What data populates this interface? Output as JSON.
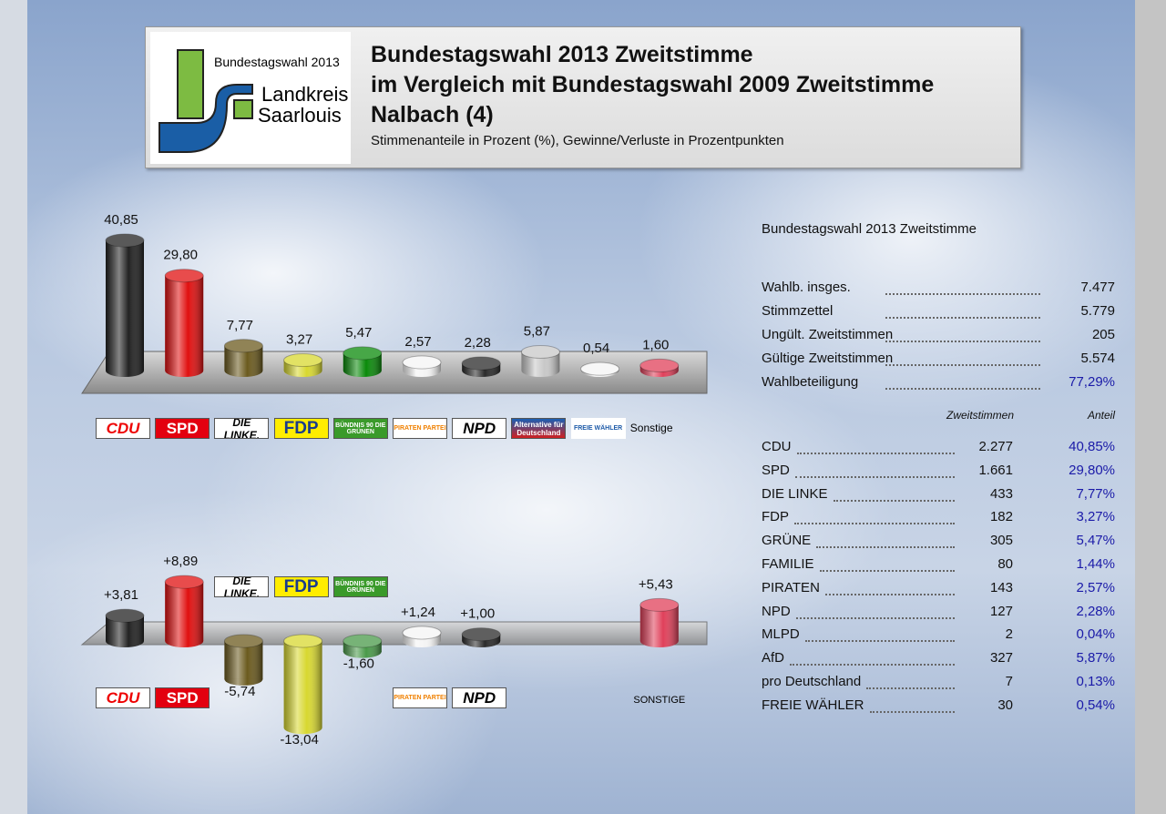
{
  "header": {
    "logo_year": "Bundestagswahl 2013",
    "logo_name": [
      "Landkreis",
      "Saarlouis"
    ],
    "title": [
      "Bundestagswahl 2013 Zweitstimme",
      "im Vergleich mit Bundestagswahl 2009 Zweitstimme",
      "Nalbach (4)"
    ],
    "subtitle": "Stimmenanteile in Prozent (%), Gewinne/Verluste in Prozentpunkten"
  },
  "chart_data": [
    {
      "type": "bar",
      "categories": [
        "CDU",
        "SPD",
        "DIE LINKE.",
        "FDP",
        "BÜNDNIS 90 DIE GRÜNEN",
        "PIRATEN PARTEI",
        "NPD",
        "Alternative für Deutschland",
        "FREIE WÄHLER",
        "Sonstige"
      ],
      "values": [
        40.85,
        29.8,
        7.77,
        3.27,
        5.47,
        2.57,
        2.28,
        5.87,
        0.54,
        1.6
      ],
      "value_labels": [
        "40,85",
        "29,80",
        "7,77",
        "3,27",
        "5,47",
        "2,57",
        "2,28",
        "5,87",
        "0,54",
        "1,60"
      ],
      "colors": [
        "#222222",
        "#e01010",
        "#6b5a1e",
        "#d8d830",
        "#0a8a0a",
        "#f4f4f4",
        "#2a2a2a",
        "#c8c8c8",
        "#f4f4f4",
        "#e0405a"
      ]
    },
    {
      "type": "bar",
      "categories": [
        "CDU",
        "SPD",
        "DIE LINKE.",
        "FDP",
        "BÜNDNIS 90 DIE GRÜNEN",
        "PIRATEN PARTEI",
        "NPD",
        "SONSTIGE"
      ],
      "values": [
        3.81,
        8.89,
        -5.74,
        -13.04,
        -1.6,
        1.24,
        1.0,
        5.43
      ],
      "value_labels": [
        "+3,81",
        "+8,89",
        "-5,74",
        "-13,04",
        "-1,60",
        "+1,24",
        "+1,00",
        "+5,43"
      ],
      "colors": [
        "#222222",
        "#e01010",
        "#6b5a1e",
        "#d8d830",
        "#4a9a4a",
        "#f4f4f4",
        "#2a2a2a",
        "#e0405a"
      ]
    }
  ],
  "stats": {
    "title": "Bundestagswahl 2013 Zweitstimme",
    "rows": [
      [
        "Wahlb. insges.",
        "7.477"
      ],
      [
        "Stimmzettel",
        "5.779"
      ],
      [
        "Ungült. Zweitstimmen",
        "205"
      ],
      [
        "Gültige Zweitstimmen",
        "5.574"
      ],
      [
        "Wahlbeteiligung",
        "77,29%"
      ]
    ]
  },
  "table": {
    "headers": [
      "Zweitstimmen",
      "Anteil"
    ],
    "rows": [
      [
        "CDU",
        "2.277",
        "40,85%"
      ],
      [
        "SPD",
        "1.661",
        "29,80%"
      ],
      [
        "DIE LINKE",
        "433",
        "7,77%"
      ],
      [
        "FDP",
        "182",
        "3,27%"
      ],
      [
        "GRÜNE",
        "305",
        "5,47%"
      ],
      [
        "FAMILIE",
        "80",
        "1,44%"
      ],
      [
        "PIRATEN",
        "143",
        "2,57%"
      ],
      [
        "NPD",
        "127",
        "2,28%"
      ],
      [
        "MLPD",
        "2",
        "0,04%"
      ],
      [
        "AfD",
        "327",
        "5,87%"
      ],
      [
        "pro Deutschland",
        "7",
        "0,13%"
      ],
      [
        "FREIE WÄHLER",
        "30",
        "0,54%"
      ]
    ]
  }
}
